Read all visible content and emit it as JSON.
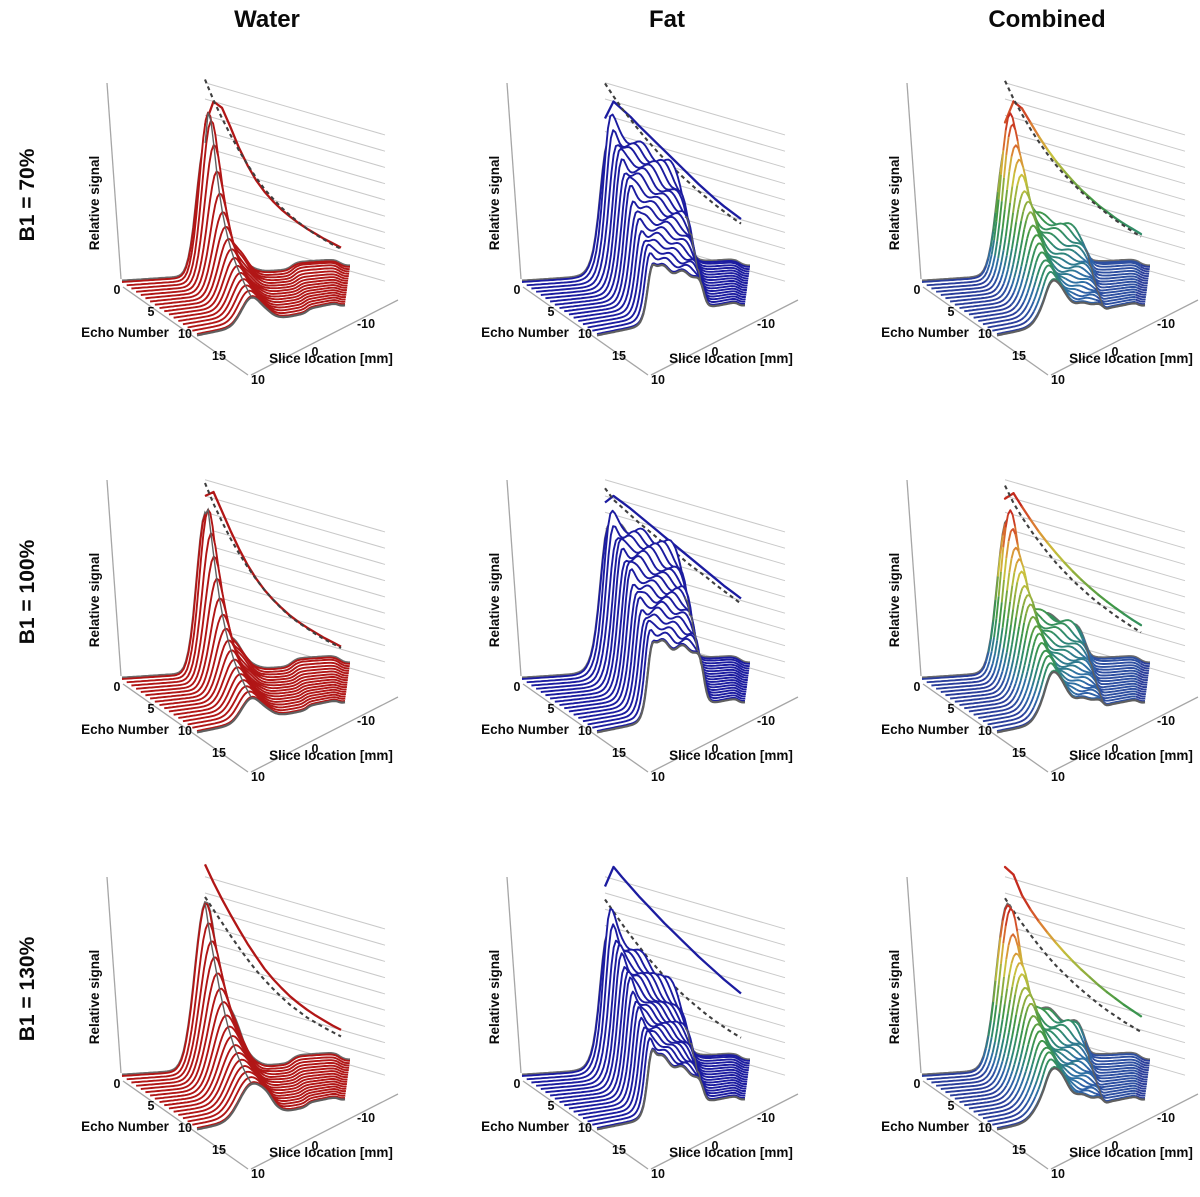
{
  "figure": {
    "columns": [
      "Water",
      "Fat",
      "Combined"
    ],
    "rows": [
      "B1 = 70%",
      "B1 = 100%",
      "B1 = 130%"
    ]
  },
  "axes": {
    "z_label": "Relative signal",
    "echo_label": "Echo Number",
    "echo_ticks": [
      "0",
      "5",
      "10",
      "15"
    ],
    "echo_range": [
      0,
      16
    ],
    "slice_label": "Slice location [mm]",
    "slice_ticks": [
      "10",
      "0",
      "-10"
    ],
    "slice_range_mm": [
      10,
      -10
    ],
    "signal_range": [
      0,
      1.25
    ],
    "inset_gridline_count": 10,
    "inset_gridline_step": 0.125
  },
  "styles": {
    "water_color": "#b11616",
    "fat_color": "#1c1ca0",
    "reference_dash_color": "#3f3f3f",
    "gridline_color": "#c9c9c9",
    "axis_ruler_color": "#a6a6a6",
    "ridge_color": "#5f5f5f",
    "text_color": "#0a0a0a",
    "surface_fill": "#ffffff",
    "jet_stops": [
      [
        0.0,
        "#2b3e9b"
      ],
      [
        0.12,
        "#2f6caa"
      ],
      [
        0.25,
        "#2e8a70"
      ],
      [
        0.4,
        "#3f9746"
      ],
      [
        0.55,
        "#8fae3e"
      ],
      [
        0.68,
        "#c9c13d"
      ],
      [
        0.8,
        "#dd8f35"
      ],
      [
        0.9,
        "#d4552a"
      ],
      [
        1.0,
        "#c42a1e"
      ]
    ]
  },
  "chart_data": {
    "type": "3d-waterfall-grid",
    "description": "Slice profiles (relative signal vs slice location) per echo number, with back-wall inset of peak signal decay (solid) vs reference decay (dashed) over horizontal gridlines",
    "echo_numbers": [
      0,
      1,
      2,
      3,
      4,
      5,
      6,
      7,
      8,
      9,
      10,
      11,
      12,
      13,
      14,
      15,
      16
    ],
    "panels": [
      {
        "id": "water-70",
        "row": "B1 = 70%",
        "column": "Water",
        "scheme": "water",
        "signal_decay": [
          0.8,
          1.0,
          0.97,
          0.84,
          0.7,
          0.585,
          0.49,
          0.42,
          0.365,
          0.32,
          0.285,
          0.255,
          0.23,
          0.21,
          0.19,
          0.175,
          0.16
        ],
        "reference_decay": [
          1.15,
          1.01,
          0.89,
          0.78,
          0.68,
          0.59,
          0.51,
          0.44,
          0.385,
          0.335,
          0.295,
          0.26,
          0.23,
          0.205,
          0.185,
          0.165,
          0.15
        ],
        "profile": {
          "type": "peak",
          "peak_center_mm": 2.7,
          "peak_width_mm": 1.05,
          "shoulder": 0.2,
          "ripple": 0.006,
          "bump_mm": [
            -4.9,
            -9.1
          ],
          "bump_height": 0.05
        }
      },
      {
        "id": "fat-70",
        "row": "B1 = 70%",
        "column": "Fat",
        "scheme": "fat",
        "signal_decay": [
          0.85,
          1.0,
          0.96,
          0.92,
          0.87,
          0.825,
          0.78,
          0.735,
          0.69,
          0.645,
          0.6,
          0.555,
          0.515,
          0.475,
          0.44,
          0.41,
          0.38
        ],
        "reference_decay": [
          1.12,
          1.04,
          0.965,
          0.9,
          0.835,
          0.775,
          0.72,
          0.67,
          0.625,
          0.58,
          0.54,
          0.5,
          0.465,
          0.43,
          0.4,
          0.37,
          0.345
        ],
        "profile": {
          "type": "slab",
          "slab_mm": [
            3.1,
            -4.5
          ],
          "ramp": 0.45,
          "edge_spike": 0.28,
          "ripple": 0.035,
          "bump_mm": [
            -4.9,
            -9.1
          ],
          "bump_height": 0.05
        }
      },
      {
        "id": "combined-70",
        "row": "B1 = 70%",
        "column": "Combined",
        "scheme": "jet",
        "signal_decay": [
          0.82,
          1.0,
          0.965,
          0.875,
          0.785,
          0.705,
          0.635,
          0.575,
          0.52,
          0.47,
          0.43,
          0.39,
          0.36,
          0.33,
          0.305,
          0.285,
          0.265
        ],
        "reference_decay": [
          1.14,
          1.02,
          0.92,
          0.825,
          0.745,
          0.67,
          0.605,
          0.55,
          0.5,
          0.455,
          0.415,
          0.38,
          0.345,
          0.315,
          0.29,
          0.265,
          0.245
        ],
        "profile": {
          "type": "peak_slab",
          "peak_center_mm": 2.7,
          "peak_width_mm": 1.1,
          "peak_mix": 0.62,
          "slab_mix": 0.5,
          "slab_mm": [
            3.1,
            -4.5
          ],
          "ramp": 0.55,
          "ripple": 0.02,
          "bump_mm": [
            -4.9,
            -9.1
          ],
          "bump_height": 0.05
        }
      },
      {
        "id": "water-100",
        "row": "B1 = 100%",
        "column": "Water",
        "scheme": "water",
        "signal_decay": [
          1.0,
          1.05,
          0.92,
          0.79,
          0.67,
          0.565,
          0.48,
          0.41,
          0.355,
          0.31,
          0.27,
          0.24,
          0.215,
          0.195,
          0.175,
          0.16,
          0.145
        ],
        "reference_decay": [
          1.1,
          0.96,
          0.84,
          0.73,
          0.635,
          0.55,
          0.475,
          0.41,
          0.355,
          0.305,
          0.265,
          0.235,
          0.21,
          0.185,
          0.165,
          0.15,
          0.135
        ],
        "profile": {
          "type": "peak",
          "peak_center_mm": 2.7,
          "peak_width_mm": 1.05,
          "shoulder": 0.2,
          "ripple": 0.006,
          "bump_mm": [
            -4.9,
            -9.1
          ],
          "bump_height": 0.05
        }
      },
      {
        "id": "fat-100",
        "row": "B1 = 100%",
        "column": "Fat",
        "scheme": "fat",
        "signal_decay": [
          0.95,
          1.02,
          0.99,
          0.96,
          0.925,
          0.89,
          0.855,
          0.82,
          0.785,
          0.75,
          0.715,
          0.68,
          0.645,
          0.61,
          0.575,
          0.545,
          0.515
        ],
        "reference_decay": [
          1.06,
          0.99,
          0.95,
          0.91,
          0.87,
          0.835,
          0.8,
          0.765,
          0.73,
          0.695,
          0.66,
          0.63,
          0.6,
          0.565,
          0.535,
          0.505,
          0.475
        ],
        "profile": {
          "type": "slab",
          "slab_mm": [
            3.1,
            -4.5
          ],
          "ramp": 0.32,
          "edge_spike": 0.25,
          "ripple": 0.035,
          "bump_mm": [
            -4.9,
            -9.1
          ],
          "bump_height": 0.05
        }
      },
      {
        "id": "combined-100",
        "row": "B1 = 100%",
        "column": "Combined",
        "scheme": "jet",
        "signal_decay": [
          0.98,
          1.04,
          0.955,
          0.875,
          0.8,
          0.735,
          0.675,
          0.62,
          0.57,
          0.525,
          0.485,
          0.448,
          0.415,
          0.385,
          0.357,
          0.332,
          0.31
        ],
        "reference_decay": [
          1.08,
          0.965,
          0.875,
          0.795,
          0.725,
          0.66,
          0.6,
          0.55,
          0.5,
          0.46,
          0.42,
          0.385,
          0.355,
          0.325,
          0.3,
          0.275,
          0.255
        ],
        "profile": {
          "type": "peak_slab",
          "peak_center_mm": 2.7,
          "peak_width_mm": 1.1,
          "peak_mix": 0.62,
          "slab_mix": 0.5,
          "slab_mm": [
            3.1,
            -4.5
          ],
          "ramp": 0.55,
          "ripple": 0.02,
          "bump_mm": [
            -4.9,
            -9.1
          ],
          "bump_height": 0.05
        }
      },
      {
        "id": "water-130",
        "row": "B1 = 130%",
        "column": "Water",
        "scheme": "water",
        "signal_decay": [
          1.22,
          1.1,
          0.99,
          0.89,
          0.795,
          0.705,
          0.625,
          0.55,
          0.49,
          0.44,
          0.395,
          0.36,
          0.33,
          0.305,
          0.285,
          0.265,
          0.25
        ],
        "reference_decay": [
          0.97,
          0.89,
          0.81,
          0.73,
          0.655,
          0.585,
          0.52,
          0.465,
          0.415,
          0.37,
          0.33,
          0.3,
          0.27,
          0.25,
          0.23,
          0.215,
          0.2
        ],
        "profile": {
          "type": "peak",
          "peak_center_mm": 2.7,
          "peak_width_mm": 1.3,
          "shoulder": 0.3,
          "ripple": 0.012,
          "bump_mm": [
            -4.9,
            -9.1
          ],
          "bump_height": 0.05
        }
      },
      {
        "id": "fat-130",
        "row": "B1 = 130%",
        "column": "Fat",
        "scheme": "fat",
        "signal_decay": [
          1.05,
          1.22,
          1.16,
          1.105,
          1.05,
          1.0,
          0.95,
          0.9,
          0.855,
          0.81,
          0.765,
          0.72,
          0.68,
          0.64,
          0.6,
          0.565,
          0.53
        ],
        "reference_decay": [
          0.95,
          0.875,
          0.8,
          0.73,
          0.665,
          0.6,
          0.545,
          0.49,
          0.445,
          0.4,
          0.36,
          0.325,
          0.29,
          0.26,
          0.235,
          0.21,
          0.19
        ],
        "profile": {
          "type": "slab",
          "slab_mm": [
            3.1,
            -4.5
          ],
          "ramp": 0.62,
          "edge_spike": 0.35,
          "ripple": 0.035,
          "bump_mm": [
            -4.9,
            -9.1
          ],
          "bump_height": 0.05
        }
      },
      {
        "id": "combined-130",
        "row": "B1 = 130%",
        "column": "Combined",
        "scheme": "jet",
        "signal_decay": [
          1.2,
          1.16,
          1.02,
          0.93,
          0.855,
          0.79,
          0.73,
          0.675,
          0.625,
          0.58,
          0.54,
          0.5,
          0.465,
          0.435,
          0.405,
          0.38,
          0.355
        ],
        "reference_decay": [
          0.96,
          0.88,
          0.805,
          0.735,
          0.67,
          0.61,
          0.555,
          0.51,
          0.465,
          0.425,
          0.39,
          0.355,
          0.325,
          0.3,
          0.275,
          0.255,
          0.235
        ],
        "profile": {
          "type": "peak_slab",
          "peak_center_mm": 2.7,
          "peak_width_mm": 1.3,
          "peak_mix": 0.62,
          "slab_mix": 0.5,
          "slab_mm": [
            3.1,
            -4.5
          ],
          "ramp": 0.6,
          "ripple": 0.025,
          "bump_mm": [
            -4.9,
            -9.1
          ],
          "bump_height": 0.05
        }
      }
    ]
  }
}
